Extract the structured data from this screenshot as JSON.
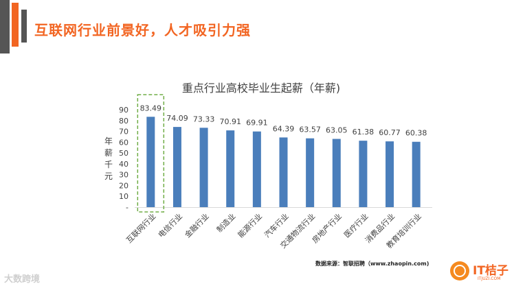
{
  "page": {
    "headline": "互联网行业前景好，人才吸引力强",
    "source_note": "数据来源：智联招聘（www.zhaopin.com)",
    "watermark_left": "大数跨境",
    "brand_name": "IT桔子",
    "brand_url": "ITJUZI.COM"
  },
  "colors": {
    "accent": "#f26522",
    "bar": "#4a7ebb",
    "highlight_box": "#70ad47"
  },
  "chart_data": {
    "type": "bar",
    "title": "重点行业高校毕业生起薪（年薪)",
    "ylabel": "年薪千元",
    "ylabel_chars": [
      "年",
      "薪",
      "千",
      "元"
    ],
    "ylim": [
      0,
      90
    ],
    "yticks": [
      "-",
      "10",
      "20",
      "30",
      "40",
      "50",
      "60",
      "70",
      "80",
      "90"
    ],
    "categories": [
      "互联网行业",
      "电信行业",
      "金融行业",
      "制造业",
      "能源行业",
      "汽车行业",
      "交通物流行业",
      "房地产行业",
      "医疗行业",
      "消费品行业",
      "教育培训行业"
    ],
    "values": [
      83.49,
      74.09,
      73.33,
      70.91,
      69.91,
      64.39,
      63.57,
      63.05,
      61.38,
      60.77,
      60.38
    ],
    "labels": [
      "83.49",
      "74.09",
      "73.33",
      "70.91",
      "69.91",
      "64.39",
      "63.57",
      "63.05",
      "61.38",
      "60.77",
      "60.38"
    ],
    "highlight_category": "互联网行业"
  }
}
